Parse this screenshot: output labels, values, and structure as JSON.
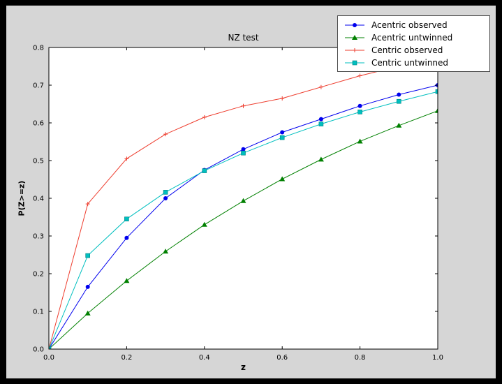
{
  "window": {
    "background": "#000000",
    "figure_background": "#d6d6d6",
    "plot_background": "#ffffff"
  },
  "chart_data": {
    "type": "line",
    "title": "NZ test",
    "xlabel": "z",
    "ylabel": "P(Z>=z)",
    "xlim": [
      0.0,
      1.0
    ],
    "ylim": [
      0.0,
      0.8
    ],
    "xticks": [
      0.0,
      0.2,
      0.4,
      0.6,
      0.8,
      1.0
    ],
    "xtick_labels": [
      "0.0",
      "0.2",
      "0.4",
      "0.6",
      "0.8",
      "1.0"
    ],
    "yticks": [
      0.0,
      0.1,
      0.2,
      0.3,
      0.4,
      0.5,
      0.6,
      0.7,
      0.8
    ],
    "ytick_labels": [
      "0.0",
      "0.1",
      "0.2",
      "0.3",
      "0.4",
      "0.5",
      "0.6",
      "0.7",
      "0.8"
    ],
    "grid": false,
    "legend_position": "upper right",
    "x": [
      0.0,
      0.1,
      0.2,
      0.3,
      0.4,
      0.5,
      0.6,
      0.7,
      0.8,
      0.9,
      1.0
    ],
    "series": [
      {
        "name": "Acentric observed",
        "color": "#0000ee",
        "marker": "circle",
        "values": [
          0.0,
          0.165,
          0.295,
          0.4,
          0.475,
          0.53,
          0.575,
          0.61,
          0.645,
          0.675,
          0.7
        ]
      },
      {
        "name": "Acentric untwinned",
        "color": "#008000",
        "marker": "triangle",
        "values": [
          0.0,
          0.095,
          0.181,
          0.259,
          0.33,
          0.393,
          0.451,
          0.503,
          0.551,
          0.593,
          0.632
        ]
      },
      {
        "name": "Centric observed",
        "color": "#ee3d2e",
        "marker": "plus",
        "values": [
          0.0,
          0.385,
          0.505,
          0.57,
          0.615,
          0.645,
          0.665,
          0.695,
          0.725,
          0.75,
          0.77
        ]
      },
      {
        "name": "Centric untwinned",
        "color": "#00bfbf",
        "marker": "square",
        "values": [
          0.0,
          0.248,
          0.345,
          0.416,
          0.473,
          0.52,
          0.561,
          0.597,
          0.629,
          0.657,
          0.683
        ]
      }
    ]
  }
}
